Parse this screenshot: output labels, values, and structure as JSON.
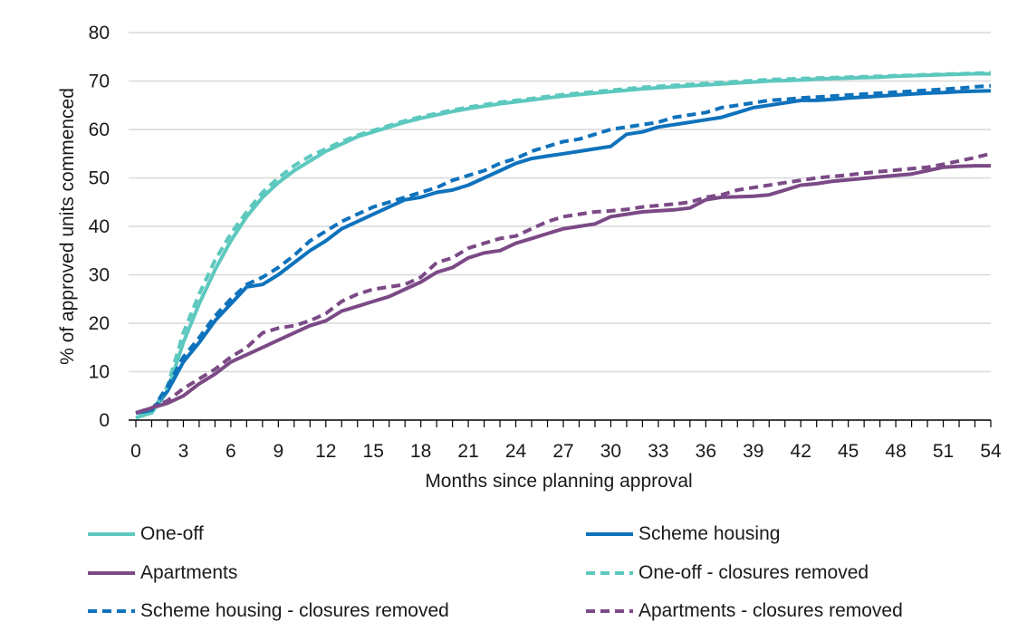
{
  "chart_data": {
    "type": "line",
    "title": "",
    "xlabel": "Months since planning approval",
    "ylabel": "% of approved units commenced",
    "xlim": [
      0,
      54
    ],
    "ylim": [
      0,
      80
    ],
    "x_ticks": [
      "0",
      "3",
      "6",
      "9",
      "12",
      "15",
      "18",
      "21",
      "24",
      "27",
      "30",
      "33",
      "36",
      "39",
      "42",
      "45",
      "48",
      "51",
      "54"
    ],
    "y_ticks": [
      "0",
      "10",
      "20",
      "30",
      "40",
      "50",
      "60",
      "70",
      "80"
    ],
    "grid": "horizontal",
    "legend_position": "bottom",
    "x": [
      0,
      1,
      2,
      3,
      4,
      5,
      6,
      7,
      8,
      9,
      10,
      11,
      12,
      13,
      14,
      15,
      16,
      17,
      18,
      19,
      20,
      21,
      22,
      23,
      24,
      25,
      26,
      27,
      28,
      29,
      30,
      31,
      32,
      33,
      34,
      35,
      36,
      37,
      38,
      39,
      40,
      41,
      42,
      43,
      44,
      45,
      46,
      47,
      48,
      49,
      50,
      51,
      52,
      53,
      54
    ],
    "series": [
      {
        "name": "One-off",
        "color": "#5CC8BE",
        "dash": "solid",
        "values": [
          0.5,
          1.5,
          6,
          16,
          24,
          31,
          37,
          42,
          46,
          49,
          51.5,
          53.5,
          55.5,
          57,
          58.5,
          59.5,
          60.5,
          61.5,
          62.3,
          63,
          63.7,
          64.3,
          64.8,
          65.3,
          65.7,
          66.1,
          66.5,
          66.9,
          67.2,
          67.5,
          67.8,
          68.1,
          68.4,
          68.6,
          68.8,
          69,
          69.2,
          69.4,
          69.6,
          69.8,
          70,
          70.1,
          70.2,
          70.4,
          70.5,
          70.6,
          70.7,
          70.8,
          71,
          71.1,
          71.2,
          71.3,
          71.4,
          71.5,
          71.5
        ]
      },
      {
        "name": "Scheme housing",
        "color": "#0F72BC",
        "dash": "solid",
        "values": [
          1.5,
          2,
          6,
          12,
          16,
          20.5,
          24,
          27.5,
          28,
          30,
          32.5,
          35,
          37,
          39.5,
          41,
          42.5,
          44,
          45.5,
          46,
          47,
          47.5,
          48.5,
          50,
          51.5,
          53,
          54,
          54.5,
          55,
          55.5,
          56,
          56.5,
          59,
          59.5,
          60.5,
          61,
          61.5,
          62,
          62.5,
          63.5,
          64.5,
          65,
          65.5,
          66,
          66,
          66.2,
          66.5,
          66.7,
          66.9,
          67.1,
          67.3,
          67.5,
          67.6,
          67.8,
          67.9,
          68
        ]
      },
      {
        "name": "Apartments",
        "color": "#7B4A86",
        "dash": "solid",
        "values": [
          1.5,
          2.5,
          3.5,
          5,
          7.5,
          9.5,
          12,
          13.5,
          15,
          16.5,
          18,
          19.5,
          20.5,
          22.5,
          23.5,
          24.5,
          25.5,
          27,
          28.5,
          30.5,
          31.5,
          33.5,
          34.5,
          35,
          36.5,
          37.5,
          38.5,
          39.5,
          40,
          40.5,
          42,
          42.5,
          43,
          43.2,
          43.4,
          43.8,
          45.5,
          46,
          46.1,
          46.2,
          46.5,
          47.5,
          48.5,
          48.8,
          49.3,
          49.6,
          49.9,
          50.2,
          50.5,
          50.8,
          51.5,
          52.2,
          52.4,
          52.5,
          52.5
        ]
      },
      {
        "name": "One-off - closures removed",
        "color": "#5CC8BE",
        "dash": "dashed",
        "values": [
          0.5,
          1.5,
          7,
          18,
          26,
          33,
          38.5,
          43,
          47,
          50,
          52.5,
          54.5,
          56,
          57.5,
          58.8,
          59.8,
          60.8,
          61.8,
          62.6,
          63.3,
          64,
          64.6,
          65.1,
          65.6,
          66,
          66.4,
          66.8,
          67.2,
          67.5,
          67.8,
          68.1,
          68.4,
          68.7,
          68.9,
          69.1,
          69.3,
          69.5,
          69.7,
          69.9,
          70.1,
          70.3,
          70.4,
          70.5,
          70.6,
          70.7,
          70.8,
          70.9,
          71,
          71.1,
          71.2,
          71.3,
          71.4,
          71.5,
          71.6,
          71.7
        ]
      },
      {
        "name": "Scheme housing - closures removed",
        "color": "#0F72BC",
        "dash": "dashed",
        "values": [
          1.5,
          2,
          7,
          13,
          17,
          21.5,
          25,
          28,
          29.5,
          31.5,
          34,
          37,
          39,
          41,
          42.5,
          44,
          45,
          46,
          47,
          48,
          49.5,
          50.5,
          51.5,
          53,
          54,
          55.5,
          56.5,
          57.5,
          58,
          59,
          60,
          60.5,
          61,
          61.5,
          62.5,
          63,
          63.5,
          64.5,
          65,
          65.5,
          66,
          66.2,
          66.5,
          66.7,
          66.9,
          67.1,
          67.3,
          67.5,
          67.7,
          67.9,
          68.1,
          68.3,
          68.5,
          68.8,
          69
        ]
      },
      {
        "name": "Apartments - closures removed",
        "color": "#7B4A86",
        "dash": "dashed",
        "values": [
          1.5,
          2.5,
          4,
          6.5,
          8.5,
          10.5,
          13,
          15,
          18,
          19,
          19.5,
          20.5,
          22,
          24.5,
          26,
          27,
          27.5,
          28,
          29.5,
          32.5,
          33.5,
          35.5,
          36.5,
          37.5,
          38,
          39.5,
          41,
          42,
          42.5,
          43,
          43.2,
          43.5,
          44,
          44.3,
          44.6,
          45,
          46,
          46.5,
          47.5,
          48,
          48.5,
          49,
          49.5,
          50,
          50.3,
          50.6,
          51,
          51.3,
          51.6,
          51.9,
          52.2,
          52.8,
          53.5,
          54.2,
          55
        ]
      }
    ]
  },
  "legend": {
    "items": [
      {
        "label": "One-off",
        "color": "#5CC8BE",
        "dash": "solid"
      },
      {
        "label": "Scheme housing",
        "color": "#0F72BC",
        "dash": "solid"
      },
      {
        "label": "Apartments",
        "color": "#7B4A86",
        "dash": "solid"
      },
      {
        "label": "One-off - closures removed",
        "color": "#5CC8BE",
        "dash": "dashed"
      },
      {
        "label": "Scheme housing - closures removed",
        "color": "#0F72BC",
        "dash": "dashed"
      },
      {
        "label": "Apartments - closures removed",
        "color": "#7B4A86",
        "dash": "dashed"
      }
    ]
  }
}
